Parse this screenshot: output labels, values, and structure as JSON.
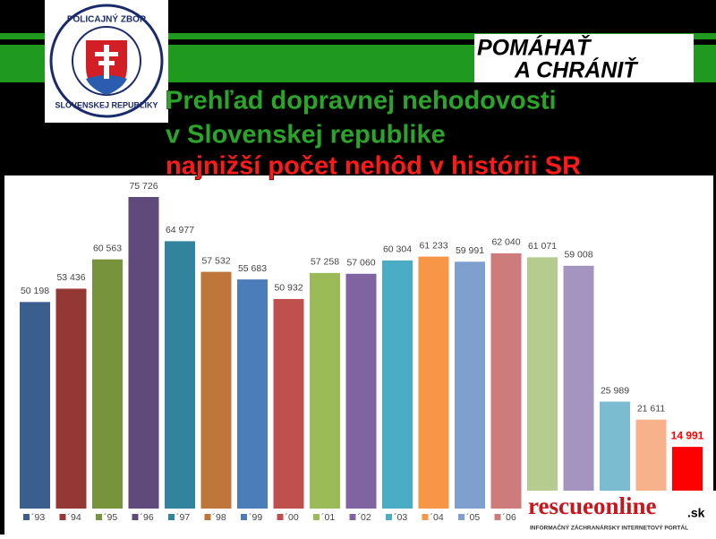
{
  "header": {
    "badge_top": "POLICAJNÝ ZBOR",
    "badge_bottom": "SLOVENSKEJ REPUBLIKY",
    "motto_1": "POMÁHAŤ",
    "motto_2": "A CHRÁNIŤ"
  },
  "chart_data": {
    "type": "bar",
    "title": [
      "Prehľad dopravnej nehodovosti",
      "v Slovenskej republike"
    ],
    "subtitle": "najnižší počet nehôd v histórii SR",
    "categories": [
      "´93",
      "´94",
      "´95",
      "´96",
      "´97",
      "´98",
      "´99",
      "´00",
      "´01",
      "´02",
      "´03",
      "´04",
      "´05",
      "´06",
      null,
      null,
      null,
      null,
      null
    ],
    "values": [
      50198,
      53436,
      60563,
      75726,
      64977,
      57532,
      55683,
      50932,
      57258,
      57060,
      60304,
      61233,
      59991,
      62040,
      61071,
      59008,
      25989,
      21611,
      14991
    ],
    "value_labels": [
      "50 198",
      "53 436",
      "60 563",
      "75 726",
      "64 977",
      "57 532",
      "55 683",
      "50 932",
      "57 258",
      "57 060",
      "60 304",
      "61 233",
      "59 991",
      "62 040",
      "61 071",
      "59 008",
      "25 989",
      "21 611",
      "14 991"
    ],
    "colors": [
      "#3a5f8f",
      "#953735",
      "#77933c",
      "#604a7b",
      "#31849b",
      "#c0753a",
      "#4a7dba",
      "#c0504d",
      "#9bbb59",
      "#8064a2",
      "#4bacc6",
      "#f79646",
      "#7f9fcf",
      "#cd7b7b",
      "#b5cc8e",
      "#a495c0",
      "#7cbcd3",
      "#f8b28b",
      "#ff0000"
    ]
  },
  "watermark": {
    "name": "rescueonline",
    "tld": ".sk",
    "tagline": "INFORMAČNÝ ZÁCHRANÁRSKY INTERNETOVÝ PORTÁL"
  }
}
